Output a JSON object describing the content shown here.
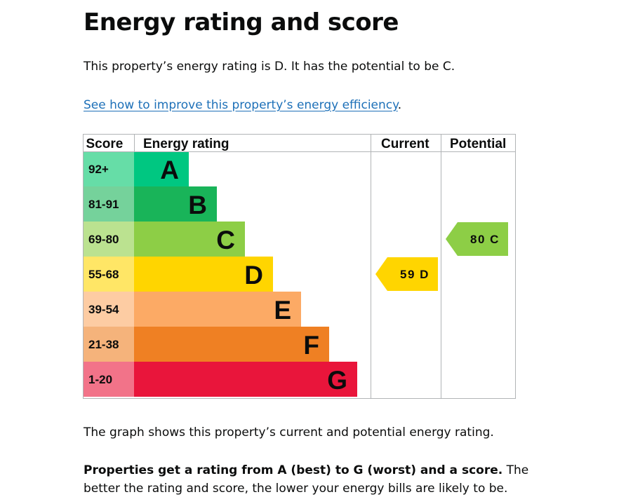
{
  "page": {
    "heading": "Energy rating and score",
    "summary": "This property’s energy rating is D. It has the potential to be C.",
    "improve_link": "See how to improve this property’s energy efficiency",
    "improve_link_suffix": ".",
    "graph_caption": "The graph shows this property’s current and potential energy rating.",
    "rating_explainer_bold": "Properties get a rating from A (best) to G (worst) and a score.",
    "rating_explainer_rest": " The better the rating and score, the lower your energy bills are likely to be."
  },
  "chart_data": {
    "type": "table",
    "columns": [
      "Score",
      "Energy rating",
      "Current",
      "Potential"
    ],
    "bands": [
      {
        "score": "92+",
        "letter": "A",
        "color": "#00c781",
        "score_bg": "#66dda7"
      },
      {
        "score": "81-91",
        "letter": "B",
        "color": "#19b459",
        "score_bg": "#75d29b"
      },
      {
        "score": "69-80",
        "letter": "C",
        "color": "#8dce46",
        "score_bg": "#bbe290"
      },
      {
        "score": "55-68",
        "letter": "D",
        "color": "#ffd500",
        "score_bg": "#ffe666"
      },
      {
        "score": "39-54",
        "letter": "E",
        "color": "#fcaa65",
        "score_bg": "#fdcca3"
      },
      {
        "score": "21-38",
        "letter": "F",
        "color": "#ef8023",
        "score_bg": "#f5b37b"
      },
      {
        "score": "1-20",
        "letter": "G",
        "color": "#e9153b",
        "score_bg": "#f27389"
      }
    ],
    "current": {
      "score": 59,
      "rating": "D",
      "label": "59 D",
      "color": "#ffd500"
    },
    "potential": {
      "score": 80,
      "rating": "C",
      "label": "80 C",
      "color": "#8dce46"
    }
  }
}
